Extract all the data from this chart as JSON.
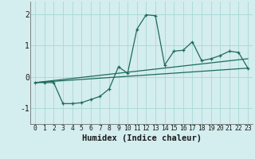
{
  "xlabel": "Humidex (Indice chaleur)",
  "bg_color": "#d4edee",
  "line_color": "#1e6b5e",
  "grid_color": "#a8d8d8",
  "xlim": [
    -0.5,
    23.5
  ],
  "ylim": [
    -1.5,
    2.4
  ],
  "xticks": [
    0,
    1,
    2,
    3,
    4,
    5,
    6,
    7,
    8,
    9,
    10,
    11,
    12,
    13,
    14,
    15,
    16,
    17,
    18,
    19,
    20,
    21,
    22,
    23
  ],
  "yticks": [
    -1,
    0,
    1,
    2
  ],
  "series1_x": [
    0,
    1,
    2,
    3,
    4,
    5,
    6,
    7,
    8,
    9,
    10,
    11,
    12,
    13,
    14,
    15,
    16,
    17,
    18,
    19,
    20,
    21,
    22,
    23
  ],
  "series1_y": [
    -0.18,
    -0.18,
    -0.18,
    -0.85,
    -0.85,
    -0.82,
    -0.72,
    -0.62,
    -0.38,
    0.32,
    0.12,
    1.52,
    1.98,
    1.95,
    0.38,
    0.82,
    0.85,
    1.12,
    0.52,
    0.58,
    0.68,
    0.82,
    0.78,
    0.28
  ],
  "series2_x": [
    0,
    23
  ],
  "series2_y": [
    -0.18,
    0.28
  ],
  "series3_x": [
    0,
    23
  ],
  "series3_y": [
    -0.18,
    0.58
  ]
}
